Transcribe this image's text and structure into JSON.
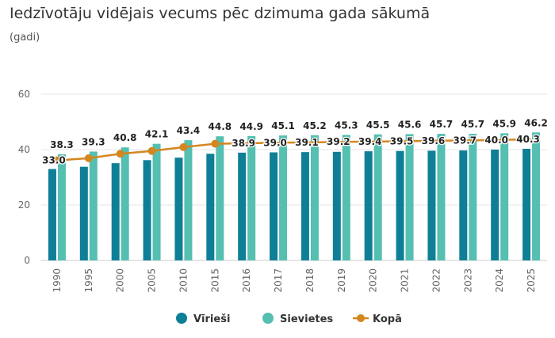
{
  "chart_data": {
    "type": "bar",
    "title": "Iedzīvotāju vidējais vecums pēc dzimuma gada sākumā",
    "subtitle": "(gadi)",
    "categories": [
      "1990",
      "1995",
      "2000",
      "2005",
      "2010",
      "2015",
      "2016",
      "2017",
      "2018",
      "2019",
      "2020",
      "2021",
      "2022",
      "2023",
      "2024",
      "2025"
    ],
    "ylim": [
      0,
      60
    ],
    "yticks": [
      0,
      20,
      40,
      60
    ],
    "grid": true,
    "legend": "bottom",
    "series": [
      {
        "name": "Vīrieši",
        "type": "bar",
        "color": "#0e7f97",
        "values": [
          33.0,
          33.8,
          35.1,
          36.2,
          37.1,
          38.5,
          38.9,
          39.0,
          39.1,
          39.2,
          39.4,
          39.5,
          39.6,
          39.7,
          40.0,
          40.3
        ],
        "labels": [
          "33.0",
          null,
          null,
          null,
          null,
          null,
          "38.9",
          "39.0",
          "39.1",
          "39.2",
          "39.4",
          "39.5",
          "39.6",
          "39.7",
          "40.0",
          "40.3"
        ]
      },
      {
        "name": "Sievietes",
        "type": "bar",
        "color": "#55bfb2",
        "values": [
          38.3,
          39.3,
          40.8,
          42.1,
          43.4,
          44.8,
          44.9,
          45.1,
          45.2,
          45.3,
          45.5,
          45.6,
          45.7,
          45.7,
          45.9,
          46.2
        ],
        "labels": [
          "38.3",
          "39.3",
          "40.8",
          "42.1",
          "43.4",
          "44.8",
          "44.9",
          "45.1",
          "45.2",
          "45.3",
          "45.5",
          "45.6",
          "45.7",
          "45.7",
          "45.9",
          "46.2"
        ]
      },
      {
        "name": "Kopā",
        "type": "line",
        "color": "#d4861f",
        "values": [
          36.1,
          36.9,
          38.5,
          39.5,
          40.9,
          42.1,
          42.3,
          42.5,
          42.6,
          42.8,
          42.9,
          43.0,
          43.2,
          43.3,
          43.5,
          43.7
        ]
      }
    ]
  }
}
